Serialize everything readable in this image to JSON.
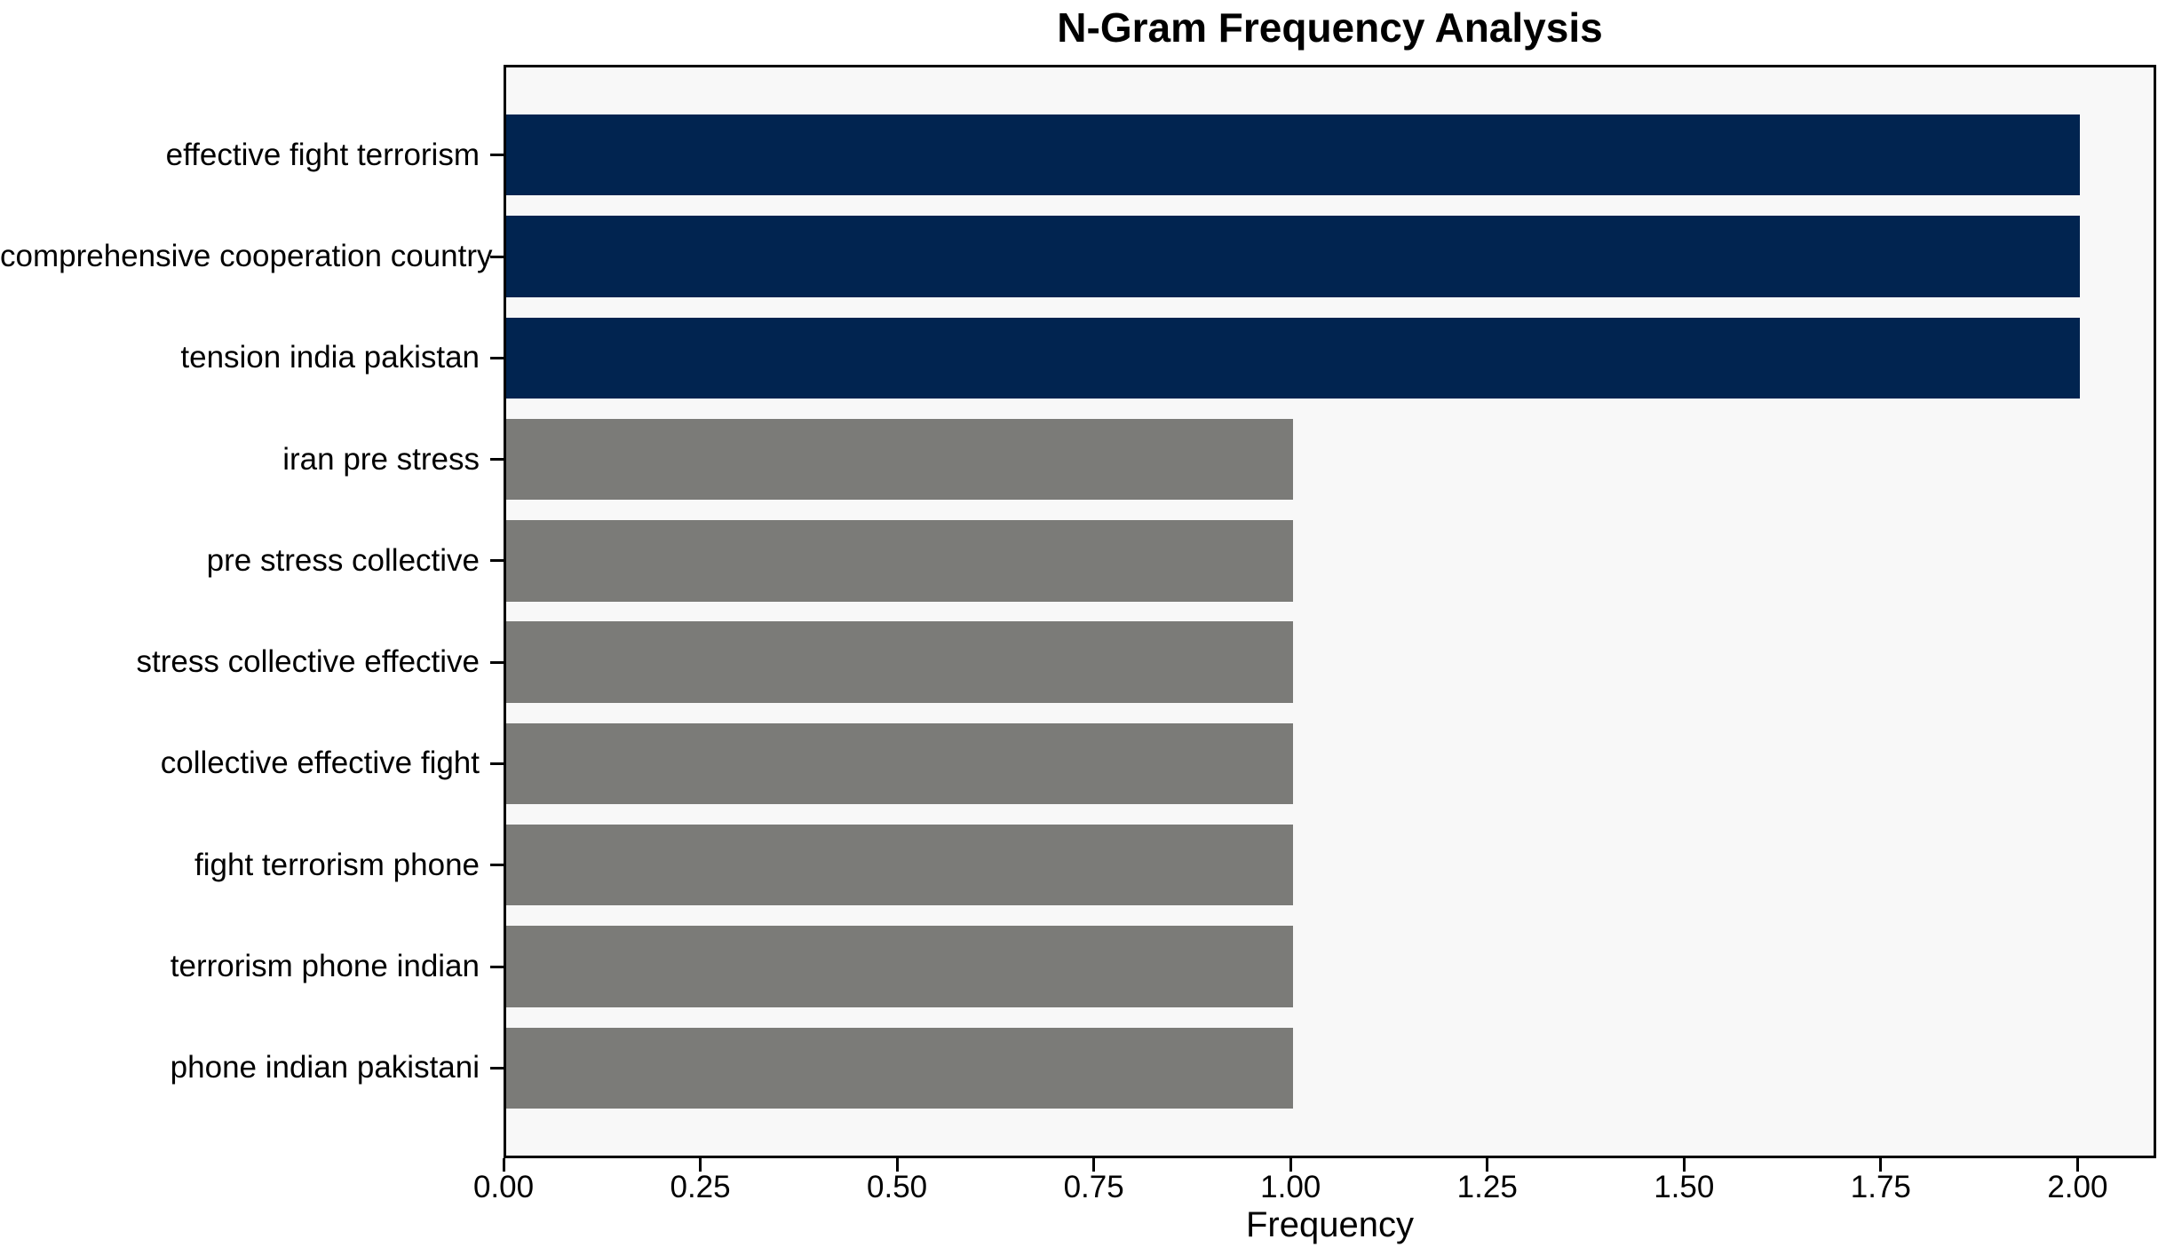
{
  "chart_data": {
    "type": "bar",
    "orientation": "horizontal",
    "title": "N-Gram Frequency Analysis",
    "xlabel": "Frequency",
    "ylabel": "",
    "categories": [
      "effective fight terrorism",
      "comprehensive cooperation country",
      "tension india pakistan",
      "iran pre stress",
      "pre stress collective",
      "stress collective effective",
      "collective effective fight",
      "fight terrorism phone",
      "terrorism phone indian",
      "phone indian pakistani"
    ],
    "values": [
      2,
      2,
      2,
      1,
      1,
      1,
      1,
      1,
      1,
      1
    ],
    "bar_colors": [
      "#012450",
      "#012450",
      "#012450",
      "#7b7b78",
      "#7b7b78",
      "#7b7b78",
      "#7b7b78",
      "#7b7b78",
      "#7b7b78",
      "#7b7b78"
    ],
    "xlim": [
      0,
      2.1
    ],
    "xticks": [
      0,
      0.25,
      0.5,
      0.75,
      1.0,
      1.25,
      1.5,
      1.75,
      2.0
    ],
    "xtick_labels": [
      "0.00",
      "0.25",
      "0.50",
      "0.75",
      "1.00",
      "1.25",
      "1.50",
      "1.75",
      "2.00"
    ],
    "grid": false,
    "legend": null,
    "colors": {
      "highlight_bar": "#012450",
      "regular_bar": "#7b7b78",
      "plot_background": "#f8f8f8",
      "spine": "#000000",
      "figure_background": "#ffffff"
    }
  }
}
